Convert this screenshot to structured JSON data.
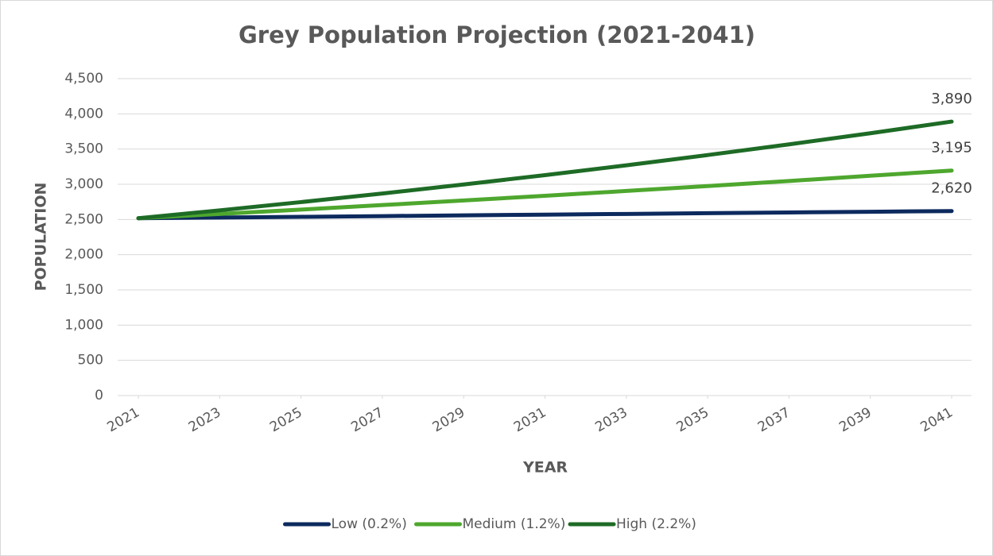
{
  "chart_data": {
    "type": "line",
    "title": "Grey Population Projection (2021-2041)",
    "x_label": "YEAR",
    "y_label": "POPULATION",
    "x": [
      2021,
      2023,
      2025,
      2027,
      2029,
      2031,
      2033,
      2035,
      2037,
      2039,
      2041
    ],
    "xlim": [
      2021,
      2041
    ],
    "xticks": [
      2021,
      2023,
      2025,
      2027,
      2029,
      2031,
      2033,
      2035,
      2037,
      2039,
      2041
    ],
    "ylim": [
      0,
      4500
    ],
    "yticks": [
      0,
      500,
      {
        "value": 1000,
        "label": "1,000"
      },
      {
        "value": 1500,
        "label": "1,500"
      },
      {
        "value": 2000,
        "label": "2,000"
      },
      {
        "value": 2500,
        "label": "2,500"
      },
      {
        "value": 3000,
        "label": "3,000"
      },
      {
        "value": 3500,
        "label": "3,500"
      },
      {
        "value": 4000,
        "label": "4,000"
      },
      {
        "value": 4500,
        "label": "4,500"
      }
    ],
    "grid": true,
    "legend": "bottom",
    "series": [
      {
        "name": "Low (0.2%)",
        "color": "#0d2a5e",
        "values": [
          2518,
          2528,
          2538,
          2548,
          2559,
          2569,
          2579,
          2590,
          2600,
          2610,
          2620
        ],
        "value_labels": [
          null,
          null,
          null,
          null,
          null,
          null,
          null,
          null,
          null,
          null,
          "2,620"
        ]
      },
      {
        "name": "Medium (1.2%)",
        "color": "#4ea72e",
        "values": [
          2518,
          2579,
          2641,
          2705,
          2770,
          2837,
          2905,
          2975,
          3047,
          3121,
          3195
        ],
        "value_labels": [
          null,
          null,
          null,
          null,
          null,
          null,
          null,
          null,
          null,
          null,
          "3,195"
        ]
      },
      {
        "name": "High (2.2%)",
        "color": "#1e6b26",
        "values": [
          2518,
          2630,
          2747,
          2869,
          2997,
          3130,
          3269,
          3415,
          3567,
          3725,
          3890
        ],
        "value_labels": [
          null,
          null,
          null,
          null,
          null,
          null,
          null,
          null,
          null,
          null,
          "3,890"
        ]
      }
    ]
  }
}
